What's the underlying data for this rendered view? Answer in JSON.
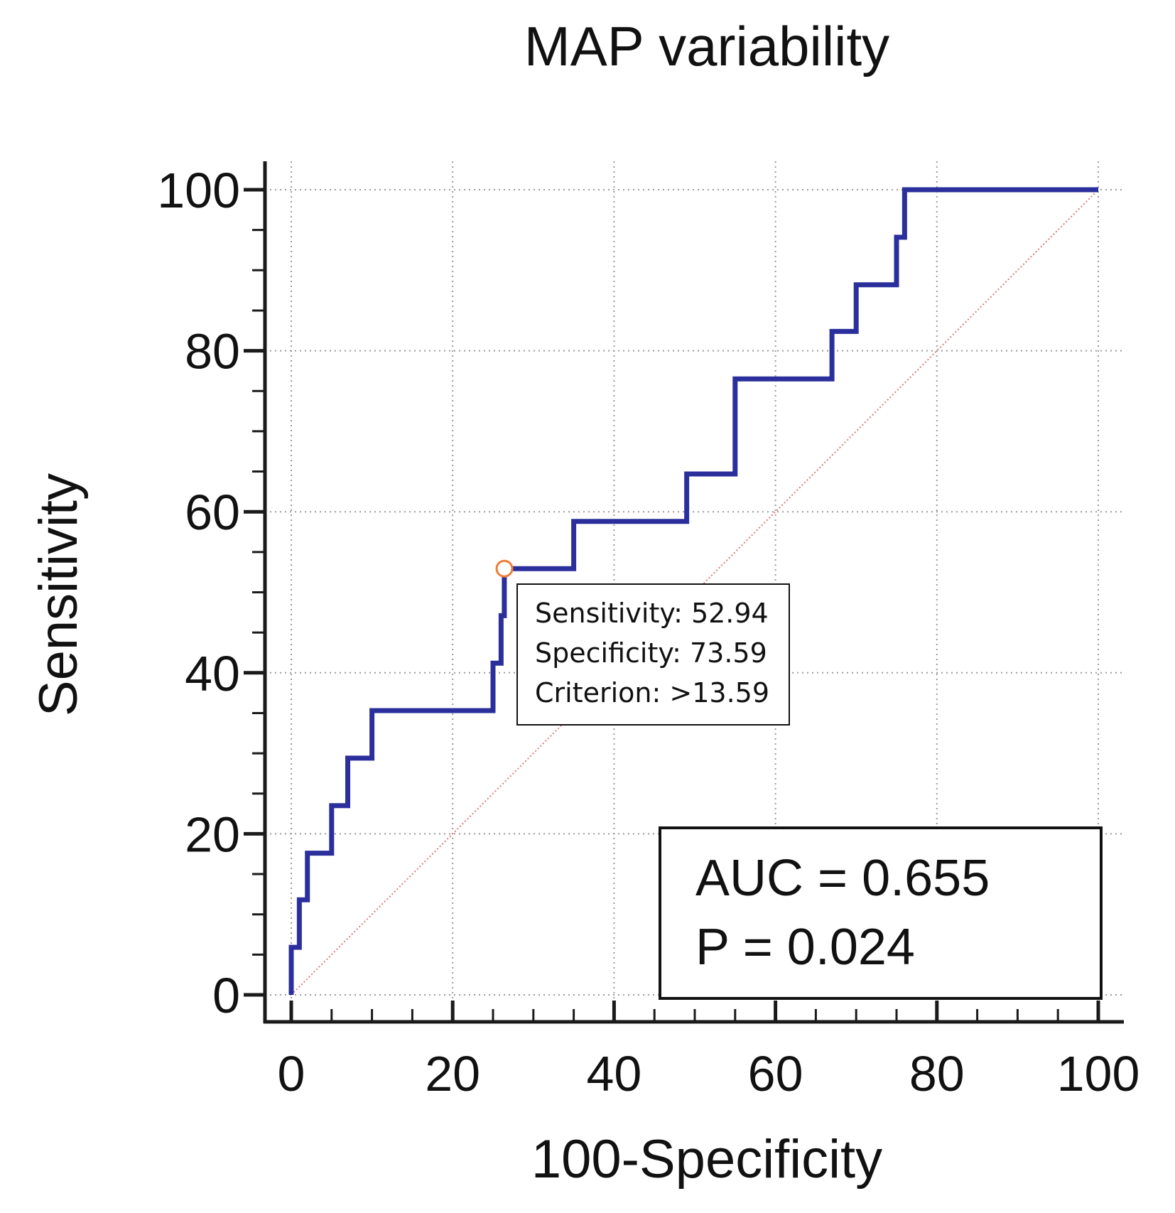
{
  "chart_data": {
    "type": "line",
    "title": "MAP variability",
    "xlabel": "100-Specificity",
    "ylabel": "Sensitivity",
    "xlim": [
      0,
      100
    ],
    "ylim": [
      0,
      100
    ],
    "x_ticks": [
      "0",
      "20",
      "40",
      "60",
      "80",
      "100"
    ],
    "y_ticks": [
      "0",
      "20",
      "40",
      "60",
      "80",
      "100"
    ],
    "grid": true,
    "series": [
      {
        "color": "#2b2f9c",
        "x": [
          0,
          0,
          1,
          1,
          2,
          2,
          5,
          5,
          7,
          7,
          10,
          10,
          25,
          25,
          26,
          26,
          26.4,
          26.4,
          35,
          35,
          49,
          49,
          55,
          55,
          67,
          67,
          70,
          70,
          75,
          75,
          76,
          76,
          100
        ],
        "y": [
          0,
          5.9,
          5.9,
          11.8,
          11.8,
          17.6,
          17.6,
          23.5,
          23.5,
          29.4,
          29.4,
          35.3,
          35.3,
          41.2,
          41.2,
          47.1,
          47.1,
          52.94,
          52.94,
          58.8,
          58.8,
          64.7,
          64.7,
          76.5,
          76.5,
          82.4,
          82.4,
          88.2,
          88.2,
          94.1,
          94.1,
          100,
          100
        ]
      },
      {
        "color": "#e07a7a",
        "x": [
          0,
          100
        ],
        "y": [
          0,
          100
        ]
      }
    ],
    "cut_point": {
      "x": 26.41,
      "y": 52.94,
      "color": "#f07d3a",
      "annotation": [
        "Sensitivity: 52.94",
        "Specificity: 73.59",
        "Criterion: >13.59"
      ]
    },
    "stats": [
      "AUC = 0.655",
      "P = 0.024"
    ]
  }
}
